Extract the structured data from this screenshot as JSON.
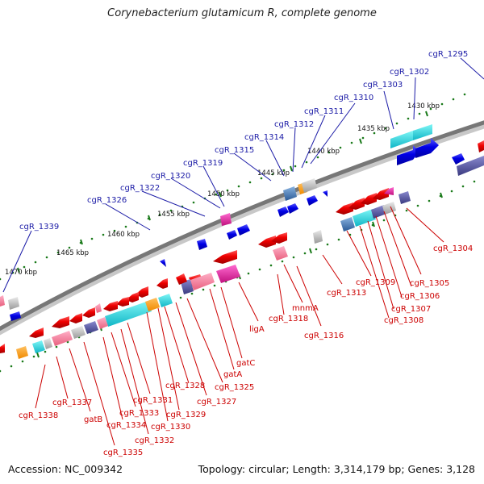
{
  "title": "Corynebacterium glutamicum R, complete genome",
  "accession": "Accession: NC_009342",
  "summary": "Topology: circular; Length: 3,314,179 bp; Genes: 3,128",
  "colors": {
    "forward_label": "#1a1aa6",
    "reverse_label": "#cc0000",
    "forward_gene": "#0000e6",
    "reverse_gene": "#ee0000",
    "tick": "#1a7a1a",
    "backbone": "#777777"
  },
  "scale_labels": [
    "1430 kbp",
    "1435 kbp",
    "1440 kbp",
    "1445 kbp",
    "1450 kbp",
    "1455 kbp",
    "1460 kbp",
    "1465 kbp",
    "1470 kbp"
  ],
  "forward_labels": [
    "cgR_1295",
    "cgR_1302",
    "cgR_1303",
    "cgR_1310",
    "cgR_1311",
    "cgR_1312",
    "cgR_1314",
    "cgR_1315",
    "cgR_1319",
    "cgR_1320",
    "cgR_1322",
    "cgR_1326",
    "cgR_1339"
  ],
  "reverse_labels": [
    "cgR_1304",
    "cgR_1305",
    "cgR_1306",
    "cgR_1307",
    "cgR_1308",
    "cgR_1309",
    "cgR_1313",
    "cgR_1316",
    "mnmA",
    "cgR_1318",
    "ligA",
    "gatC",
    "gatA",
    "cgR_1325",
    "cgR_1327",
    "cgR_1328",
    "cgR_1329",
    "cgR_1330",
    "cgR_1331",
    "cgR_1332",
    "cgR_1333",
    "cgR_1334",
    "cgR_1335",
    "gatB",
    "cgR_1337",
    "cgR_1338"
  ]
}
